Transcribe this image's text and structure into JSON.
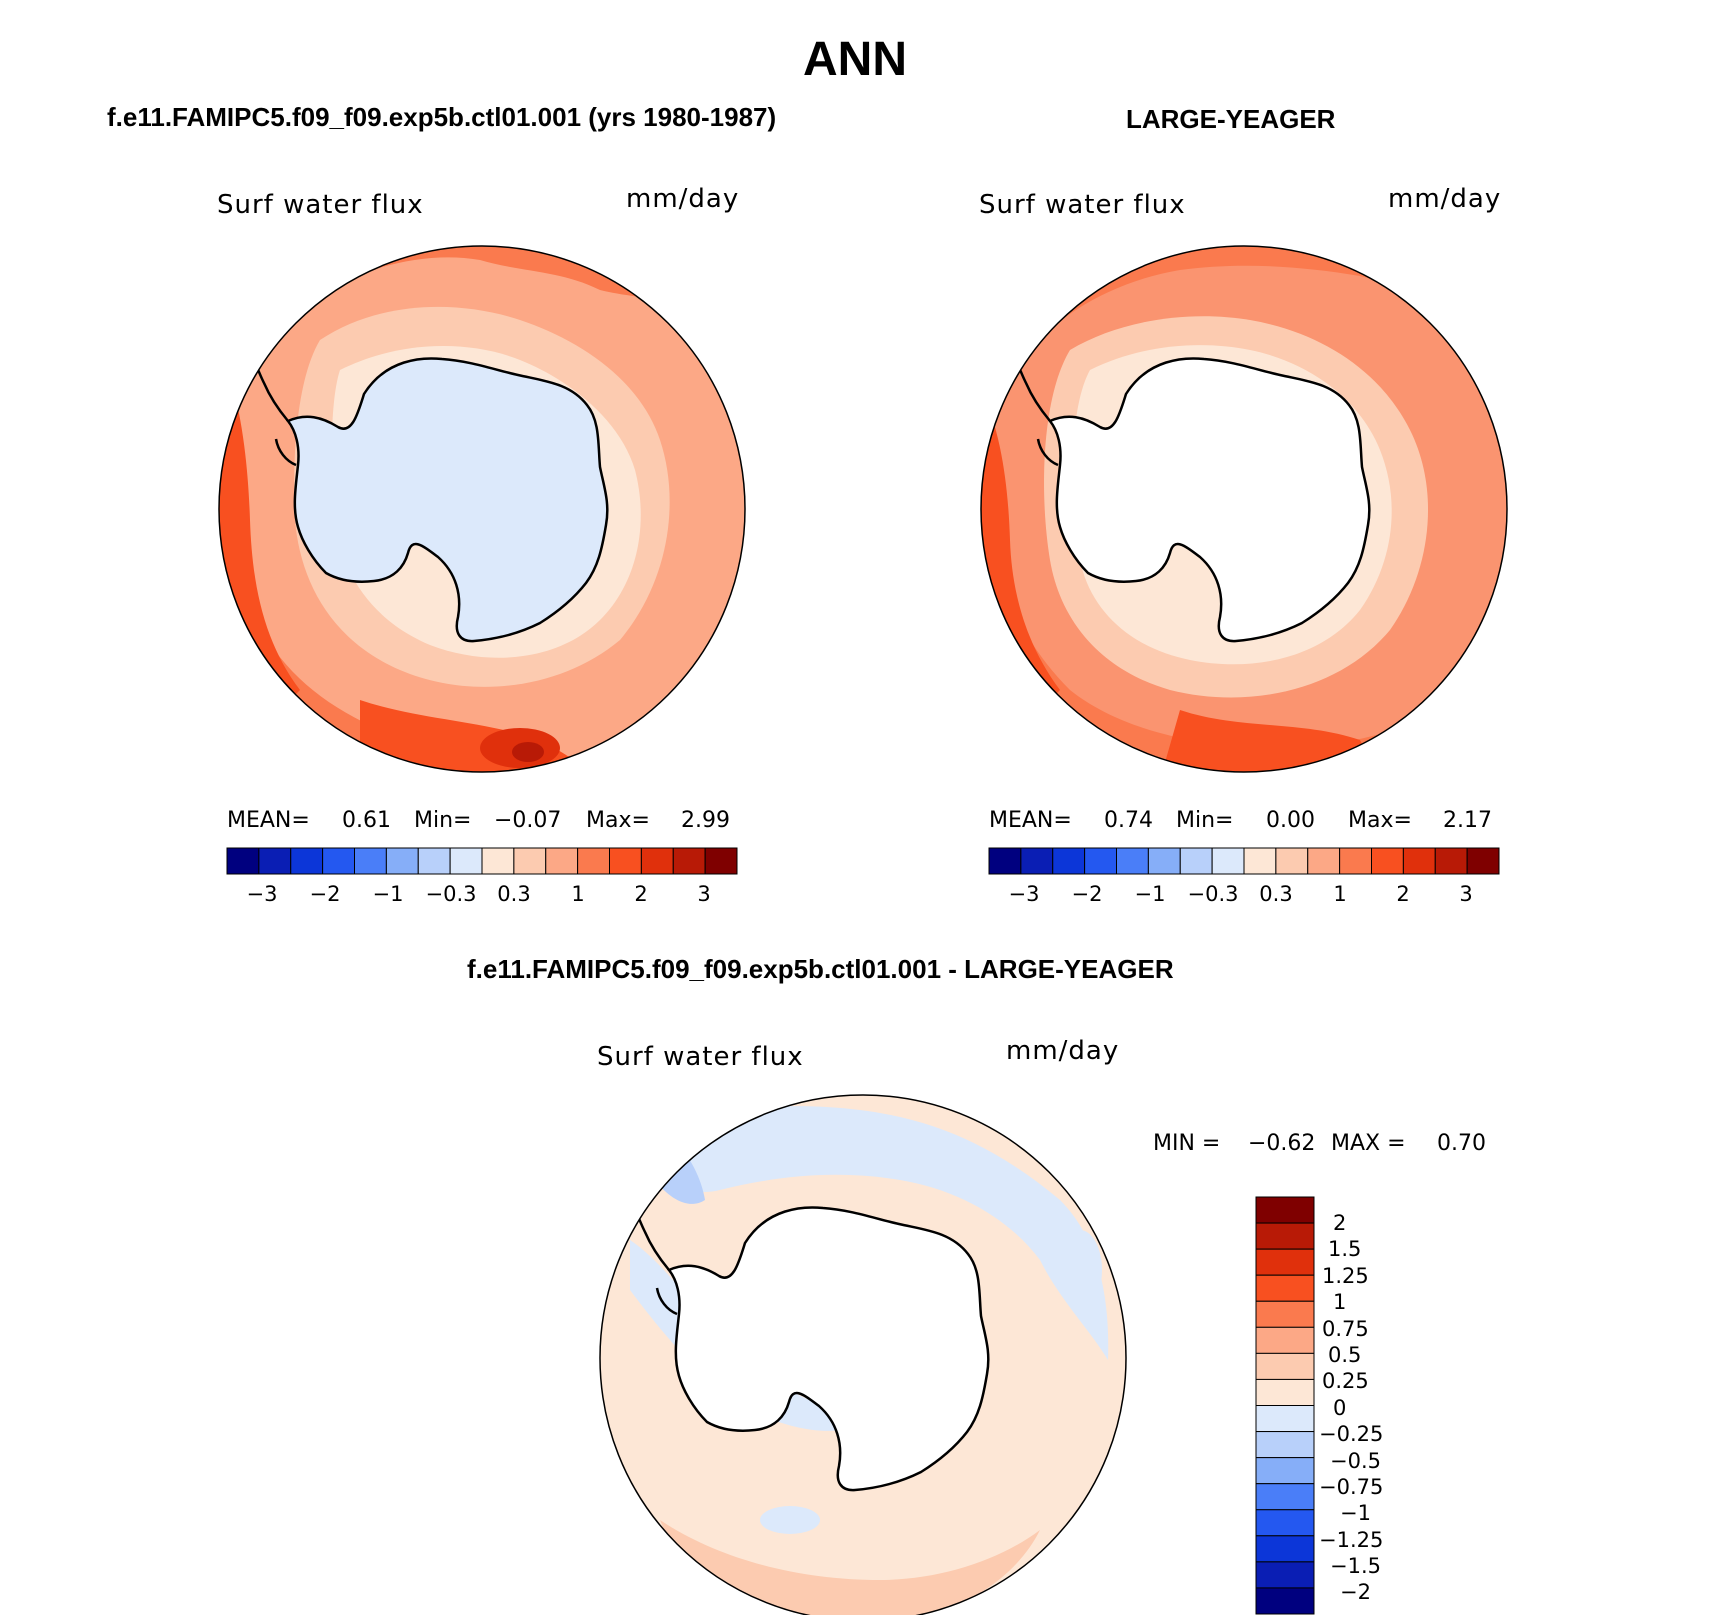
{
  "title": "ANN",
  "panels": [
    {
      "subtitle": "f.e11.FAMIPC5.f09_f09.exp5b.ctl01.001 (yrs 1980-1987)",
      "variable": "Surf water flux",
      "units": "mm/day",
      "stats": {
        "mean_label": "MEAN=",
        "mean": "0.61",
        "min_label": "Min=",
        "min": "−0.07",
        "max_label": "Max=",
        "max": "2.99"
      }
    },
    {
      "subtitle": "LARGE-YEAGER",
      "variable": "Surf water flux",
      "units": "mm/day",
      "stats": {
        "mean_label": "MEAN=",
        "mean": "0.74",
        "min_label": "Min=",
        "min": "0.00",
        "max_label": "Max=",
        "max": "2.17"
      }
    },
    {
      "subtitle": "f.e11.FAMIPC5.f09_f09.exp5b.ctl01.001 - LARGE-YEAGER",
      "variable": "Surf water flux",
      "units": "mm/day",
      "stats": {
        "min_label": "MIN =",
        "min": "−0.62",
        "max_label": "MAX =",
        "max": "0.70"
      }
    }
  ],
  "colorbar_horizontal": {
    "colors": [
      "#00007f",
      "#0a1eb4",
      "#0c36d8",
      "#2458f0",
      "#4a7ef8",
      "#86aef8",
      "#b8d0fa",
      "#dce9fb",
      "#fde7d6",
      "#fccbb0",
      "#fca886",
      "#fa7a4e",
      "#f85020",
      "#e0300c",
      "#b81a06",
      "#7f0000"
    ],
    "tick_labels": [
      "−3",
      "−2",
      "−1",
      "−0.3",
      "0.3",
      "1",
      "2",
      "3"
    ]
  },
  "colorbar_vertical": {
    "colors": [
      "#7f0000",
      "#b81a06",
      "#e0300c",
      "#f85020",
      "#fa7a4e",
      "#fca886",
      "#fccbb0",
      "#fde7d6",
      "#dce9fb",
      "#b8d0fa",
      "#86aef8",
      "#4a7ef8",
      "#2458f0",
      "#0c36d8",
      "#0a1eb4",
      "#00007f"
    ],
    "tick_labels": [
      "2",
      "1.5",
      "1.25",
      "1",
      "0.75",
      "0.5",
      "0.25",
      "0",
      "−0.25",
      "−0.5",
      "−0.75",
      "−1",
      "−1.25",
      "−1.5",
      "−2"
    ]
  },
  "map_fills": {
    "ocean_model": "#fca886",
    "ocean_obs": "#fa9470",
    "ocean_diff": "#fde7d6",
    "land_model": "#dce9fb",
    "land_obs": "#ffffff",
    "band_light": "#fccbb0",
    "band_strong": "#f85020",
    "diff_neg": "#dce9fb",
    "diff_neg2": "#b8d0fa"
  }
}
